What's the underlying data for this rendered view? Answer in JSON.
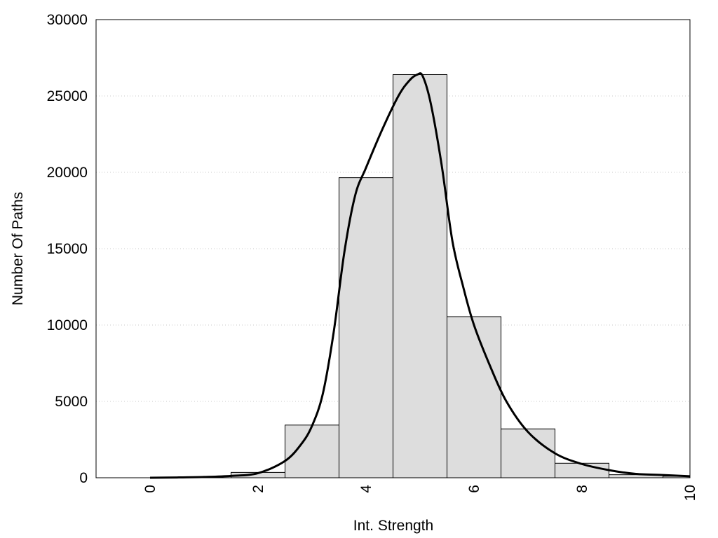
{
  "chart_data": {
    "type": "bar",
    "title": "",
    "xlabel": "Int. Strength",
    "ylabel": "Number Of Paths",
    "xlim": [
      -1,
      10
    ],
    "ylim": [
      0,
      30000
    ],
    "x_ticks": [
      0,
      2,
      4,
      6,
      8,
      10
    ],
    "y_ticks": [
      0,
      5000,
      10000,
      15000,
      20000,
      25000,
      30000
    ],
    "grid": "horizontal dotted",
    "bar_color": "#dddddd",
    "curve_color": "#000000",
    "bars": [
      {
        "x": 0,
        "value": 0
      },
      {
        "x": 1,
        "value": 0
      },
      {
        "x": 2,
        "value": 350
      },
      {
        "x": 3,
        "value": 3450
      },
      {
        "x": 4,
        "value": 19650
      },
      {
        "x": 5,
        "value": 26400
      },
      {
        "x": 6,
        "value": 10550
      },
      {
        "x": 7,
        "value": 3200
      },
      {
        "x": 8,
        "value": 950
      },
      {
        "x": 9,
        "value": 200
      },
      {
        "x": 10,
        "value": 100
      }
    ],
    "fit_curve": {
      "type": "line",
      "x": [
        0,
        0.5,
        1,
        1.5,
        2,
        2.5,
        2.8,
        3,
        3.2,
        3.4,
        3.6,
        3.8,
        4,
        4.3,
        4.6,
        4.8,
        4.95,
        5.05,
        5.2,
        5.4,
        5.6,
        5.8,
        6,
        6.3,
        6.6,
        7,
        7.5,
        8,
        8.5,
        9,
        9.5,
        10
      ],
      "y": [
        0,
        20,
        50,
        120,
        300,
        1100,
        2200,
        3400,
        5500,
        9500,
        14800,
        18500,
        20300,
        22800,
        25000,
        26000,
        26400,
        26300,
        24500,
        20500,
        15500,
        12500,
        10000,
        7300,
        5000,
        3000,
        1600,
        900,
        500,
        250,
        180,
        100
      ]
    }
  }
}
